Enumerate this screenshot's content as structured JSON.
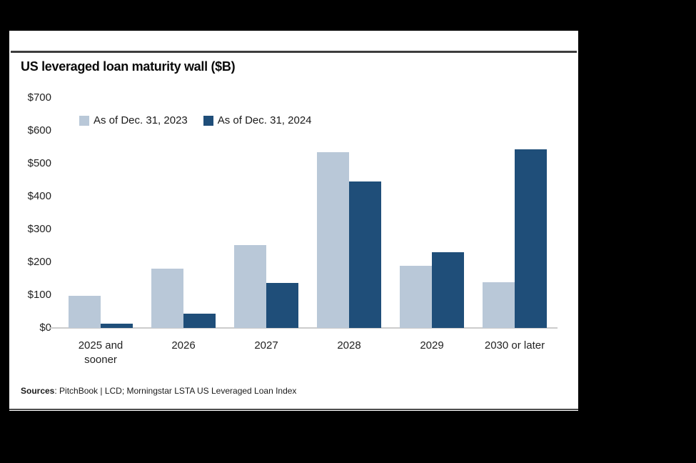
{
  "window": {
    "background": "#000000",
    "panel_background": "#ffffff",
    "rule_color": "#3d3d3d"
  },
  "chart": {
    "title": "US leveraged loan maturity wall ($B)"
  },
  "chart_data": {
    "type": "bar",
    "title": "US leveraged loan maturity wall ($B)",
    "categories": [
      "2025 and\nsooner",
      "2026",
      "2027",
      "2028",
      "2029",
      "2030 or later"
    ],
    "series": [
      {
        "name": "As of Dec. 31, 2023",
        "color": "#b9c8d8",
        "values": [
          97,
          180,
          253,
          535,
          190,
          140
        ]
      },
      {
        "name": "As of Dec. 31, 2024",
        "color": "#1f4e79",
        "values": [
          13,
          43,
          137,
          445,
          230,
          543
        ]
      }
    ],
    "ylabel": "",
    "xlabel": "",
    "ylim": [
      0,
      700
    ],
    "y_ticks": [
      "$700",
      "$600",
      "$500",
      "$400",
      "$300",
      "$200",
      "$100",
      "$0"
    ],
    "y_tick_values": [
      700,
      600,
      500,
      400,
      300,
      200,
      100,
      0
    ],
    "grid": false,
    "legend_position": "top-left",
    "axis_color": "#cccccc"
  },
  "footer": {
    "bold": "Sources",
    "rest": ": PitchBook | LCD; Morningstar LSTA US Leveraged Loan Index"
  }
}
